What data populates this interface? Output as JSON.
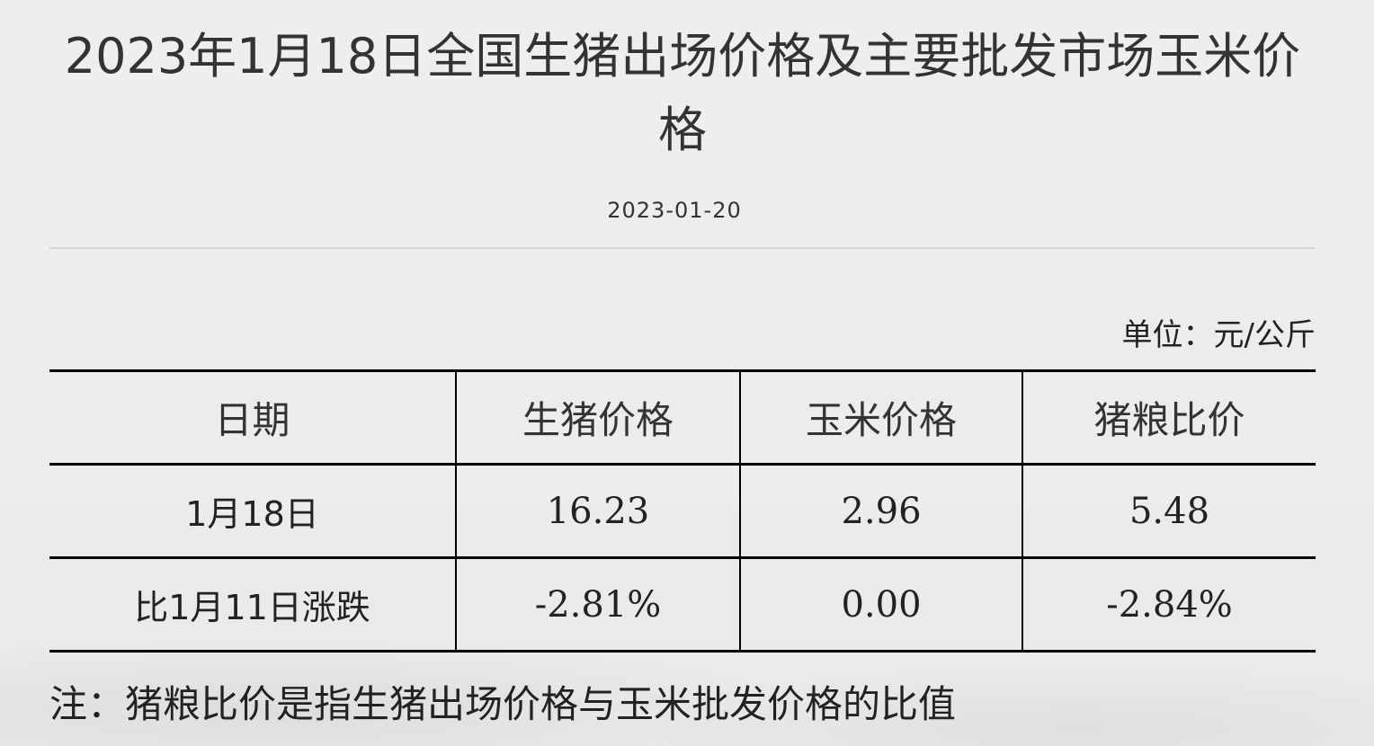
{
  "article": {
    "title": "2023年1月18日全国生猪出场价格及主要批发市场玉米价格",
    "date": "2023-01-20",
    "unit": "单位：元/公斤",
    "table": {
      "headers": [
        "日期",
        "生猪价格",
        "玉米价格",
        "猪粮比价"
      ],
      "rows": [
        [
          "1月18日",
          "16.23",
          "2.96",
          "5.48"
        ],
        [
          "比1月11日涨跌",
          "-2.81%",
          "0.00",
          "-2.84%"
        ]
      ]
    },
    "note": "注：猪粮比价是指生猪出场价格与玉米批发价格的比值"
  }
}
